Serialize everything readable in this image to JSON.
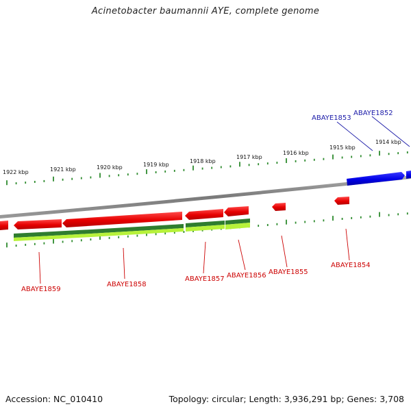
{
  "title": "Acinetobacter baumannii AYE, complete genome",
  "footer": {
    "accession_label": "Accession:",
    "accession": "NC_010410",
    "topology_label": "Topology:",
    "topology": "circular",
    "length_label": "Length:",
    "length": "3,936,291 bp",
    "genes_label": "Genes:",
    "genes": "3,708"
  },
  "colors": {
    "forward_gene": "#0000e6",
    "reverse_gene": "#e60000",
    "forward_label": "#1a1aa8",
    "reverse_label": "#cc0000",
    "backbone": "#8a8a8a",
    "tick": "#2e8b2e",
    "feature_dark_green": "#2f7d2f",
    "feature_light_green": "#b7f23a"
  },
  "scale_labels": [
    "1914 kbp",
    "1915 kbp",
    "1916 kbp",
    "1917 kbp",
    "1918 kbp",
    "1919 kbp",
    "1920 kbp",
    "1921 kbp",
    "1922 kbp"
  ],
  "forward_genes": [
    {
      "label": "ABAYE1852"
    },
    {
      "label": "ABAYE1853"
    }
  ],
  "reverse_genes": [
    {
      "label": "ABAYE1854"
    },
    {
      "label": "ABAYE1855"
    },
    {
      "label": "ABAYE1856"
    },
    {
      "label": "ABAYE1857"
    },
    {
      "label": "ABAYE1858"
    },
    {
      "label": "ABAYE1859"
    }
  ]
}
